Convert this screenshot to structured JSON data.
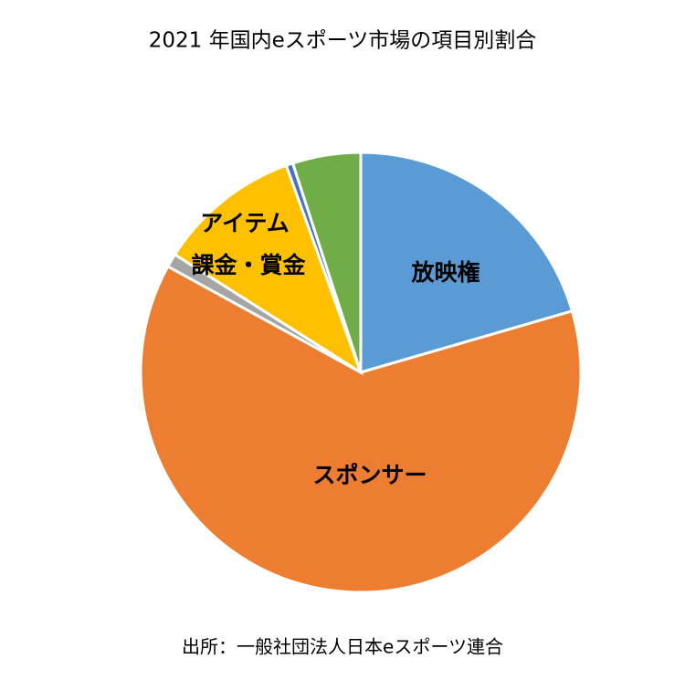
{
  "chart_data": {
    "type": "pie",
    "title": "2021 年国内eスポーツ市場の項目別割合",
    "source": "出所：一般社団法人日本eスポーツ連合",
    "categories": [
      "放映権",
      "スポンサー",
      null,
      [
        "アイテム",
        "課金・賞金"
      ],
      null,
      null
    ],
    "values": [
      20.5,
      62.5,
      1,
      10.5,
      0.5,
      5
    ],
    "colors": [
      "#5b9bd5",
      "#ed7d31",
      "#a5a5a5",
      "#ffc000",
      "#4472c4",
      "#70ad47"
    ]
  }
}
